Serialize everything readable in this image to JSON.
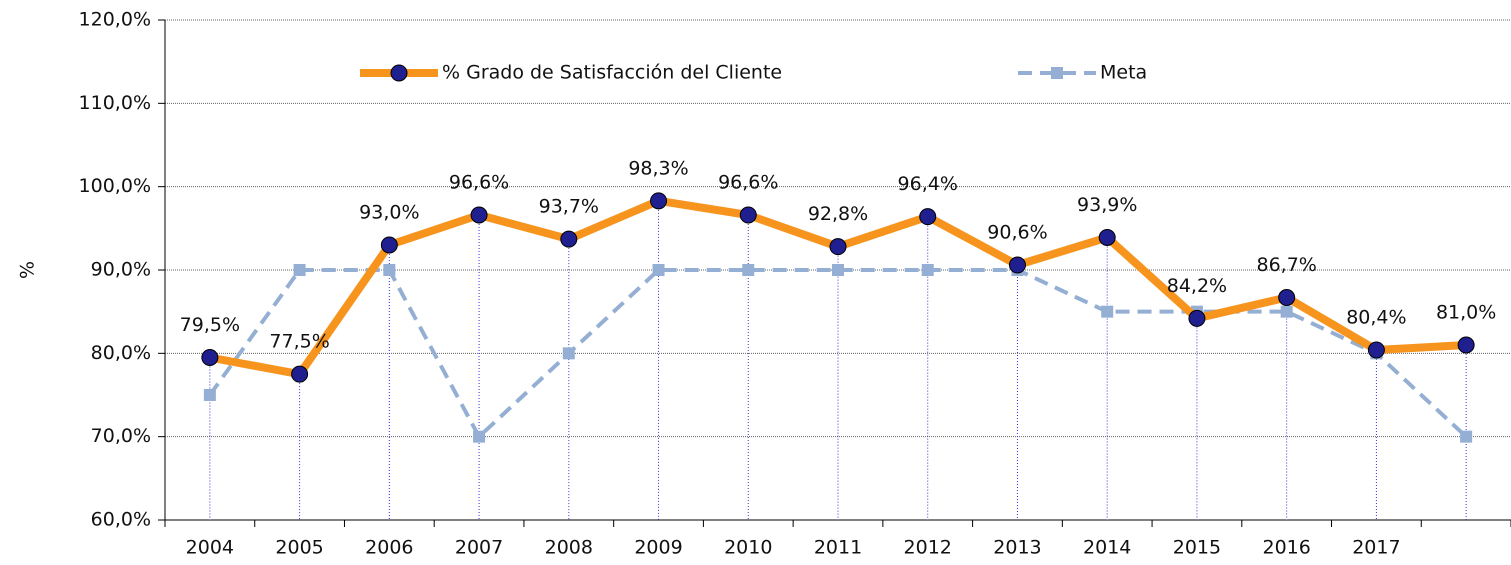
{
  "chart_data": {
    "type": "line",
    "categories": [
      "2004",
      "2005",
      "2006",
      "2007",
      "2008",
      "2009",
      "2010",
      "2011",
      "2012",
      "2013",
      "2014",
      "2015",
      "2016",
      "2017",
      null
    ],
    "series": [
      {
        "name": "% Grado de Satisfacción del Cliente",
        "color": "#f7941d",
        "marker_color": "#1f1f8f",
        "values": [
          79.5,
          77.5,
          93.0,
          96.6,
          93.7,
          98.3,
          96.6,
          92.8,
          96.4,
          90.6,
          93.9,
          84.2,
          86.7,
          80.4,
          81.0
        ],
        "value_labels": [
          "79,5%",
          "77,5%",
          "93,0%",
          "96,6%",
          "93,7%",
          "98,3%",
          "96,6%",
          "92,8%",
          "96,4%",
          "90,6%",
          "93,9%",
          "84,2%",
          "86,7%",
          "80,4%",
          "81,0%"
        ]
      },
      {
        "name": "Meta",
        "color": "#94afd3",
        "values": [
          75,
          90,
          90,
          70,
          80,
          90,
          90,
          90,
          90,
          90,
          85,
          85,
          85,
          80,
          70
        ]
      }
    ],
    "ylabel": "%",
    "ylim": [
      60,
      120
    ],
    "yticks": [
      {
        "value": 60,
        "label": "60,0%"
      },
      {
        "value": 70,
        "label": "70,0%"
      },
      {
        "value": 80,
        "label": "80,0%"
      },
      {
        "value": 90,
        "label": "90,0%"
      },
      {
        "value": 100,
        "label": "100,0%"
      },
      {
        "value": 110,
        "label": "110,0%"
      },
      {
        "value": 120,
        "label": "120,0%"
      }
    ],
    "grid": true
  }
}
